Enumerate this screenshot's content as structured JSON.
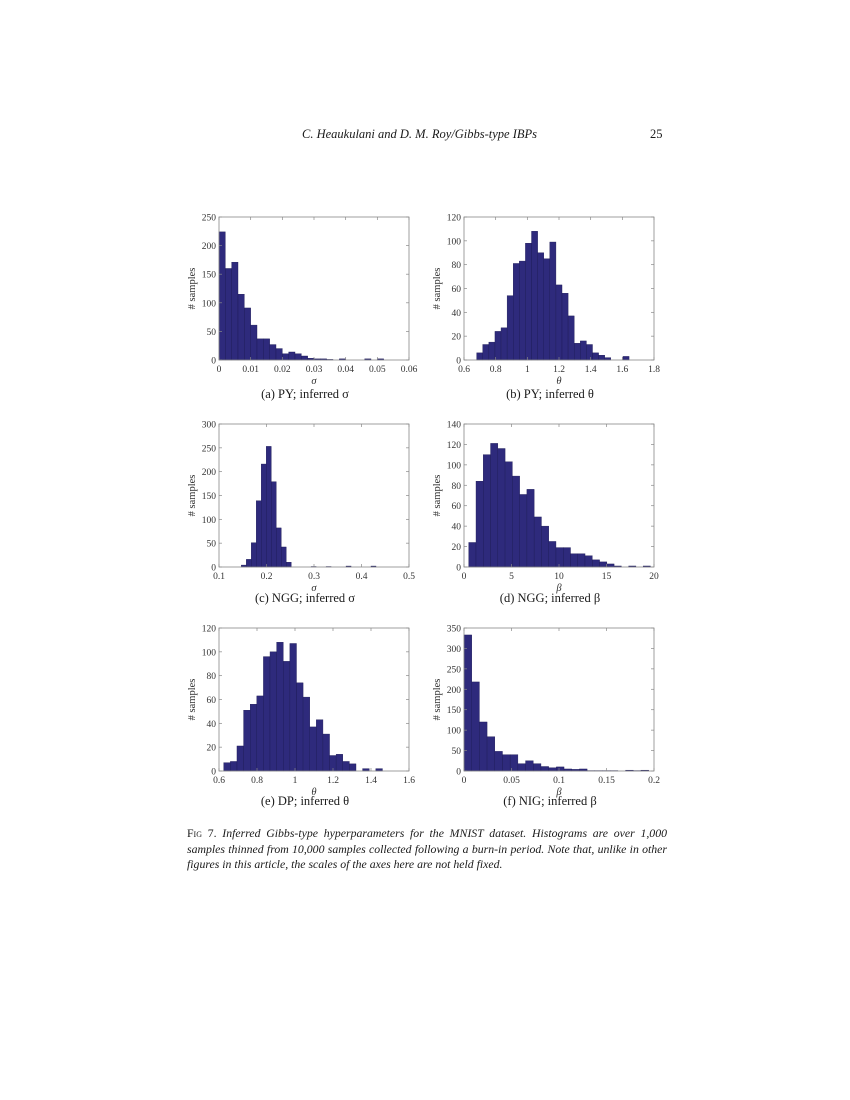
{
  "running_head": {
    "title": "C. Heaukulani and D. M. Roy/Gibbs-type IBPs",
    "page_number": "25"
  },
  "style": {
    "bar_fill": "#2e2a7c",
    "bar_edge": "#1c1a55",
    "axis_color": "#888888"
  },
  "figure": {
    "number_label": "Fig 7.",
    "caption": "Inferred Gibbs-type hyperparameters for the MNIST dataset. Histograms are over 1,000 samples thinned from 10,000 samples collected following a burn-in period. Note that, unlike in other figures in this article, the scales of the axes here are not held fixed."
  },
  "chart_data": [
    {
      "id": "a",
      "type": "bar",
      "caption": "(a) PY; inferred σ",
      "xlabel": "σ",
      "ylabel": "# samples",
      "xlim": [
        0,
        0.06
      ],
      "ylim": [
        0,
        250
      ],
      "xticks": [
        "0",
        "0.01",
        "0.02",
        "0.03",
        "0.04",
        "0.05",
        "0.06"
      ],
      "yticks": [
        "0",
        "50",
        "100",
        "150",
        "200",
        "250"
      ],
      "bin_start": 0.0,
      "bin_width": 0.002,
      "values": [
        224,
        160,
        171,
        115,
        91,
        61,
        37,
        37,
        27,
        20,
        11,
        14,
        11,
        7,
        3,
        2,
        2,
        1,
        0,
        2,
        0,
        0,
        0,
        2,
        0,
        2
      ]
    },
    {
      "id": "b",
      "type": "bar",
      "caption": "(b) PY; inferred θ",
      "xlabel": "θ",
      "ylabel": "# samples",
      "xlim": [
        0.6,
        1.8
      ],
      "ylim": [
        0,
        120
      ],
      "xticks": [
        "0.6",
        "0.8",
        "1",
        "1.2",
        "1.4",
        "1.6",
        "1.8"
      ],
      "yticks": [
        "0",
        "20",
        "40",
        "60",
        "80",
        "100",
        "120"
      ],
      "bin_start": 0.68,
      "bin_width": 0.0385,
      "values": [
        6,
        13,
        15,
        24,
        27,
        54,
        81,
        83,
        98,
        108,
        90,
        85,
        99,
        63,
        56,
        37,
        14,
        16,
        13,
        6,
        4,
        2,
        0,
        0,
        3
      ]
    },
    {
      "id": "c",
      "type": "bar",
      "caption": "(c) NGG; inferred σ",
      "xlabel": "σ",
      "ylabel": "# samples",
      "xlim": [
        0.1,
        0.5
      ],
      "ylim": [
        0,
        300
      ],
      "xticks": [
        "0.1",
        "0.2",
        "0.3",
        "0.4",
        "0.5"
      ],
      "yticks": [
        "0",
        "50",
        "100",
        "150",
        "200",
        "250",
        "300"
      ],
      "bin_start": 0.147,
      "bin_width": 0.0105,
      "values": [
        4,
        16,
        51,
        139,
        216,
        253,
        179,
        82,
        42,
        10,
        0,
        0,
        0,
        0,
        1,
        0,
        0,
        1,
        0,
        0,
        0,
        2,
        0,
        0,
        0,
        0,
        2
      ]
    },
    {
      "id": "d",
      "type": "bar",
      "caption": "(d) NGG; inferred β",
      "xlabel": "β",
      "ylabel": "# samples",
      "xlim": [
        0,
        20
      ],
      "ylim": [
        0,
        140
      ],
      "xticks": [
        "0",
        "5",
        "10",
        "15",
        "20"
      ],
      "yticks": [
        "0",
        "20",
        "40",
        "60",
        "80",
        "100",
        "120",
        "140"
      ],
      "bin_start": 0.5,
      "bin_width": 0.765,
      "values": [
        24,
        84,
        110,
        121,
        116,
        103,
        89,
        71,
        76,
        49,
        40,
        25,
        19,
        19,
        13,
        13,
        11,
        7,
        5,
        3,
        1,
        0,
        1,
        0,
        1
      ]
    },
    {
      "id": "e",
      "type": "bar",
      "caption": "(e) DP; inferred θ",
      "xlabel": "θ",
      "ylabel": "# samples",
      "xlim": [
        0.6,
        1.6
      ],
      "ylim": [
        0,
        120
      ],
      "xticks": [
        "0.6",
        "0.8",
        "1",
        "1.2",
        "1.4",
        "1.6"
      ],
      "yticks": [
        "0",
        "20",
        "40",
        "60",
        "80",
        "100",
        "120"
      ],
      "bin_start": 0.625,
      "bin_width": 0.0348,
      "values": [
        7,
        8,
        21,
        51,
        56,
        63,
        96,
        100,
        108,
        92,
        107,
        74,
        62,
        37,
        43,
        31,
        13,
        14,
        8,
        6,
        0,
        2,
        0,
        2
      ]
    },
    {
      "id": "f",
      "type": "bar",
      "caption": "(f) NIG; inferred β",
      "xlabel": "β",
      "ylabel": "# samples",
      "xlim": [
        0,
        0.2
      ],
      "ylim": [
        0,
        350
      ],
      "xticks": [
        "0",
        "0.05",
        "0.1",
        "0.15",
        "0.2"
      ],
      "yticks": [
        "0",
        "50",
        "100",
        "150",
        "200",
        "250",
        "300",
        "350"
      ],
      "bin_start": 0.0,
      "bin_width": 0.0081,
      "values": [
        333,
        218,
        120,
        84,
        48,
        40,
        40,
        18,
        25,
        18,
        11,
        8,
        10,
        5,
        4,
        5,
        1,
        1,
        1,
        1,
        0,
        2,
        1,
        2
      ]
    }
  ]
}
